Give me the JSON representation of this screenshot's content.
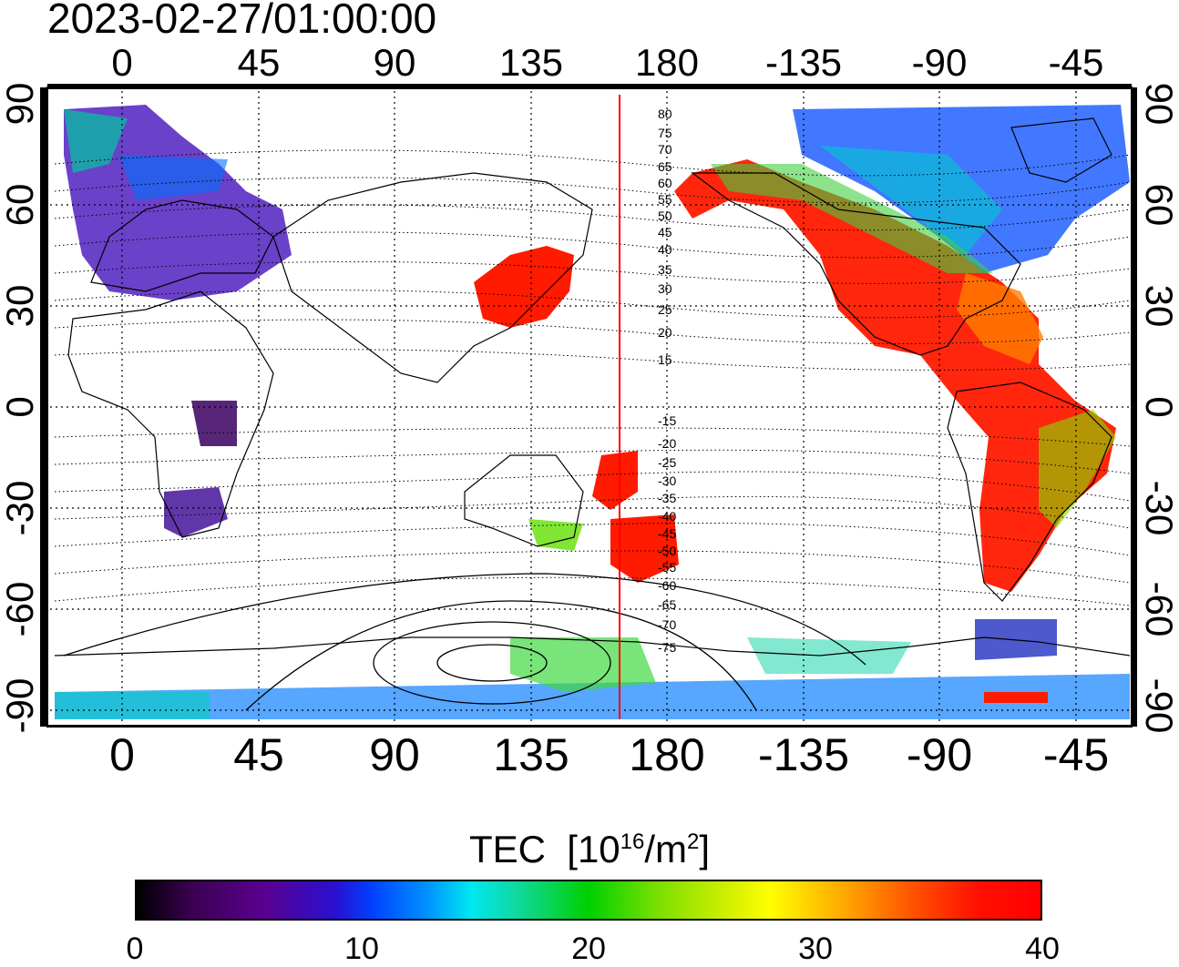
{
  "timestamp": "2023-02-27/01:00:00",
  "map": {
    "longitude_ticks": [
      "0",
      "45",
      "90",
      "135",
      "180",
      "-135",
      "-90",
      "-45"
    ],
    "latitude_ticks": [
      "90",
      "60",
      "30",
      "0",
      "-30",
      "-60",
      "-90"
    ],
    "terminator_longitude": 165,
    "contour_labels": [
      "80",
      "75",
      "70",
      "65",
      "60",
      "55",
      "50",
      "45",
      "40",
      "35",
      "30",
      "25",
      "20",
      "15",
      "-15",
      "-20",
      "-25",
      "-30",
      "-35",
      "-40",
      "-45",
      "-50",
      "-55",
      "-60",
      "-65",
      "-70",
      "-75"
    ]
  },
  "colorbar": {
    "title": "TEC",
    "unit_base": "[10",
    "unit_exp": "16",
    "unit_mid": "/m",
    "unit_exp2": "2",
    "unit_end": "]",
    "tick_labels": [
      "0",
      "10",
      "20",
      "30",
      "40"
    ],
    "range": [
      0,
      40
    ]
  }
}
